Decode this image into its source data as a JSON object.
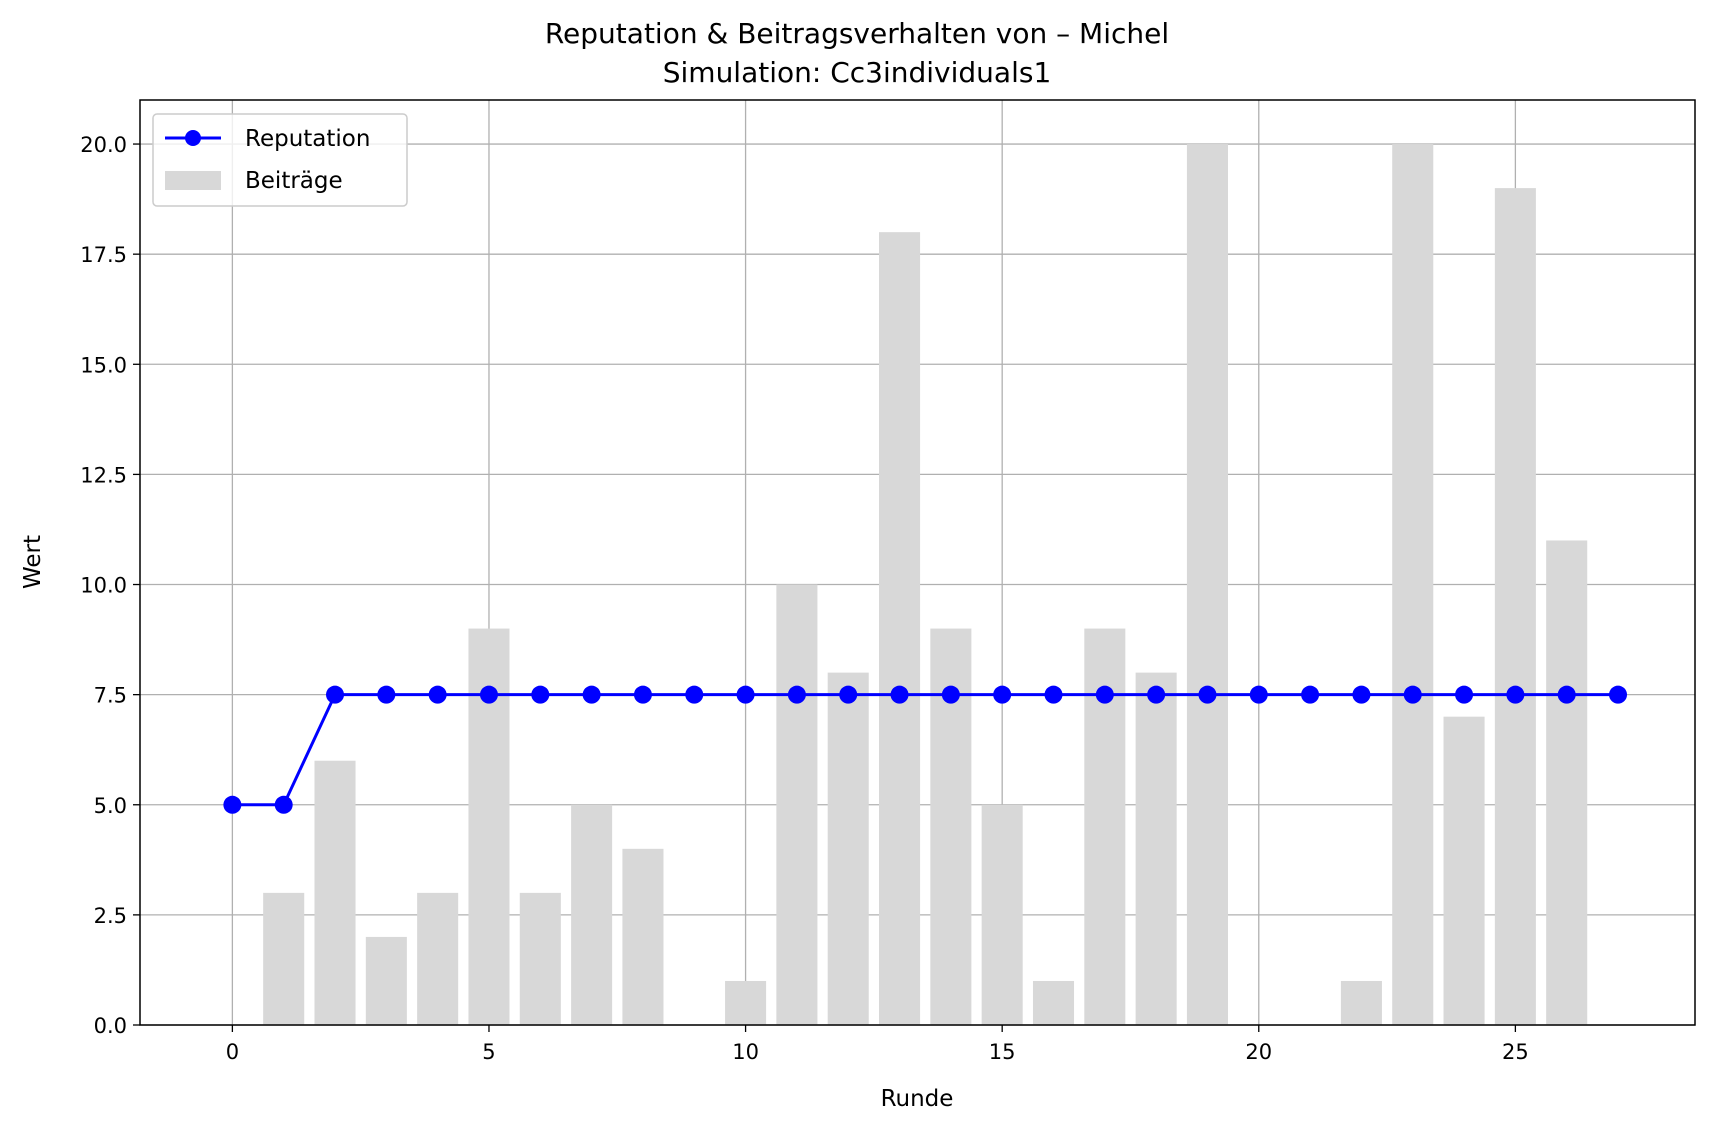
{
  "chart_data": {
    "type": "bar+line",
    "title": "Reputation & Beitragsverhalten von – Michel",
    "subtitle": "Simulation: Cc3individuals1",
    "xlabel": "Runde",
    "ylabel": "Wert",
    "xlim": [
      -1.8,
      28.5
    ],
    "ylim": [
      0,
      21
    ],
    "x_ticks": [
      0,
      5,
      10,
      15,
      20,
      25
    ],
    "y_ticks": [
      0.0,
      2.5,
      5.0,
      7.5,
      10.0,
      12.5,
      15.0,
      17.5,
      20.0
    ],
    "x_tick_labels": [
      "0",
      "5",
      "10",
      "15",
      "20",
      "25"
    ],
    "y_tick_labels": [
      "0.0",
      "2.5",
      "5.0",
      "7.5",
      "10.0",
      "12.5",
      "15.0",
      "17.5",
      "20.0"
    ],
    "grid": true,
    "legend_position": "top-left",
    "series": [
      {
        "name": "Reputation",
        "kind": "line",
        "color": "#0000ff",
        "x": [
          0,
          1,
          2,
          3,
          4,
          5,
          6,
          7,
          8,
          9,
          10,
          11,
          12,
          13,
          14,
          15,
          16,
          17,
          18,
          19,
          20,
          21,
          22,
          23,
          24,
          25,
          26,
          27
        ],
        "values": [
          5,
          5,
          7.5,
          7.5,
          7.5,
          7.5,
          7.5,
          7.5,
          7.5,
          7.5,
          7.5,
          7.5,
          7.5,
          7.5,
          7.5,
          7.5,
          7.5,
          7.5,
          7.5,
          7.5,
          7.5,
          7.5,
          7.5,
          7.5,
          7.5,
          7.5,
          7.5,
          7.5
        ]
      },
      {
        "name": "Beiträge",
        "kind": "bar",
        "color": "#d8d8d8",
        "x": [
          1,
          2,
          3,
          4,
          5,
          6,
          7,
          8,
          9,
          10,
          11,
          12,
          13,
          14,
          15,
          16,
          17,
          18,
          19,
          20,
          21,
          22,
          23,
          24,
          25,
          26
        ],
        "values": [
          3,
          6,
          2,
          3,
          9,
          3,
          5,
          4,
          0,
          1,
          10,
          8,
          18,
          9,
          5,
          1,
          9,
          8,
          20,
          0,
          0,
          1,
          20,
          7,
          19,
          11
        ]
      }
    ]
  }
}
